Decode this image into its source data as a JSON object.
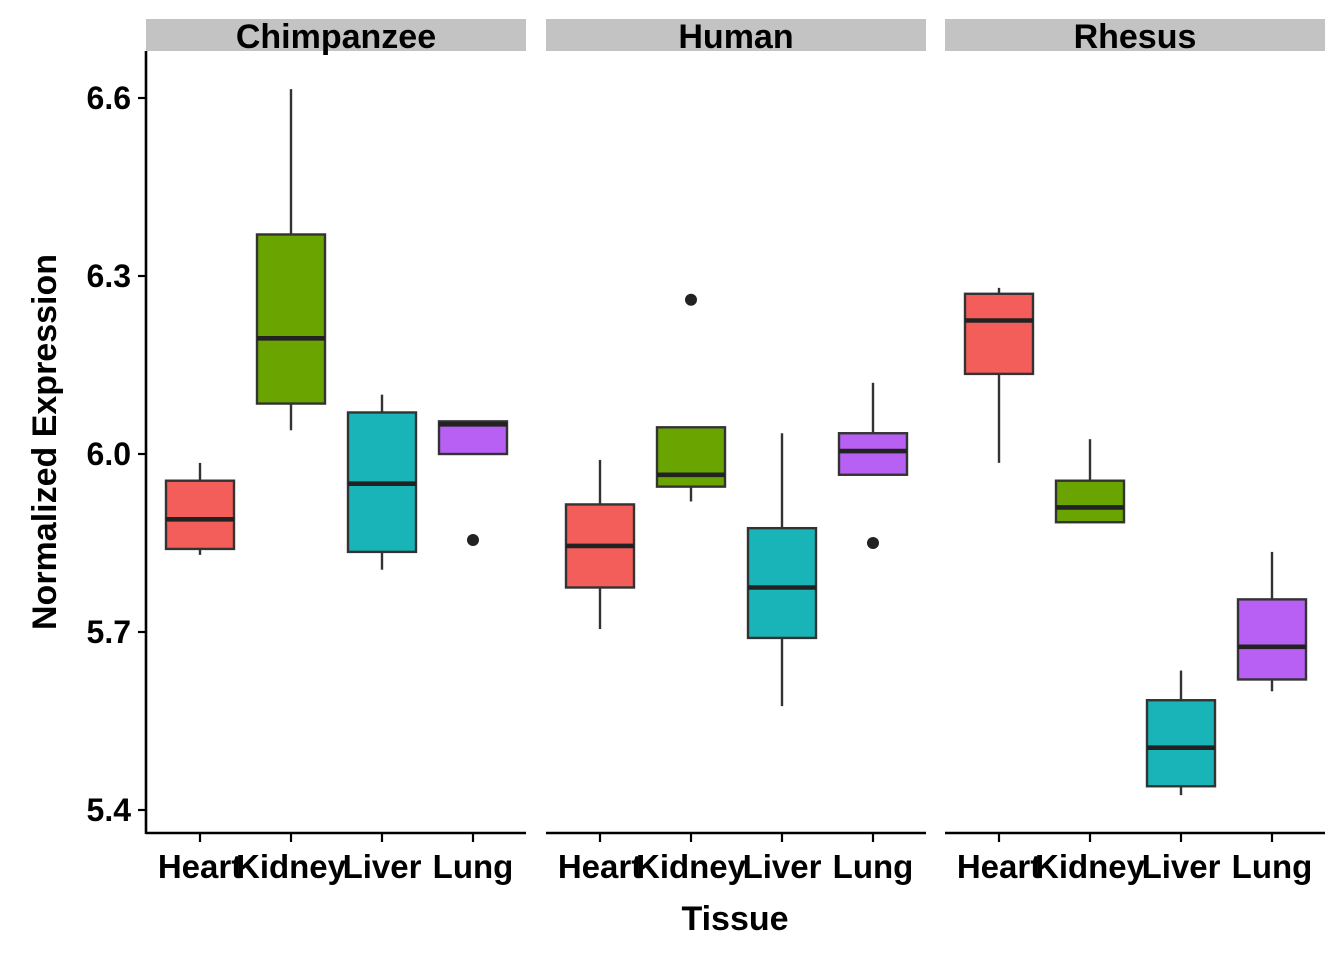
{
  "chart_data": {
    "type": "boxplot",
    "xlabel": "Tissue",
    "ylabel": "Normalized Expression",
    "ylim": [
      5.36,
      6.67
    ],
    "y_ticks": [
      "5.4",
      "5.7",
      "6.0",
      "6.3",
      "6.6"
    ],
    "grid": false,
    "categories": [
      "Heart",
      "Kidney",
      "Liver",
      "Lung"
    ],
    "category_colors": {
      "Heart": "#f35e5a",
      "Kidney": "#6aa400",
      "Liver": "#19b4b8",
      "Lung": "#b760f3"
    },
    "panels": [
      {
        "name": "Chimpanzee",
        "boxes": [
          {
            "category": "Heart",
            "whisker_low": 5.83,
            "q1": 5.84,
            "median": 5.89,
            "q3": 5.955,
            "whisker_high": 5.985,
            "outliers": []
          },
          {
            "category": "Kidney",
            "whisker_low": 6.04,
            "q1": 6.085,
            "median": 6.195,
            "q3": 6.37,
            "whisker_high": 6.615,
            "outliers": []
          },
          {
            "category": "Liver",
            "whisker_low": 5.805,
            "q1": 5.835,
            "median": 5.95,
            "q3": 6.07,
            "whisker_high": 6.1,
            "outliers": []
          },
          {
            "category": "Lung",
            "whisker_low": 6.0,
            "q1": 6.0,
            "median": 6.05,
            "q3": 6.055,
            "whisker_high": 6.055,
            "outliers": [
              5.855
            ]
          }
        ]
      },
      {
        "name": "Human",
        "boxes": [
          {
            "category": "Heart",
            "whisker_low": 5.705,
            "q1": 5.775,
            "median": 5.845,
            "q3": 5.915,
            "whisker_high": 5.99,
            "outliers": []
          },
          {
            "category": "Kidney",
            "whisker_low": 5.92,
            "q1": 5.945,
            "median": 5.965,
            "q3": 6.045,
            "whisker_high": 6.045,
            "outliers": [
              6.26
            ]
          },
          {
            "category": "Liver",
            "whisker_low": 5.575,
            "q1": 5.69,
            "median": 5.775,
            "q3": 5.875,
            "whisker_high": 6.035,
            "outliers": []
          },
          {
            "category": "Lung",
            "whisker_low": 5.965,
            "q1": 5.965,
            "median": 6.005,
            "q3": 6.035,
            "whisker_high": 6.12,
            "outliers": [
              5.85
            ]
          }
        ]
      },
      {
        "name": "Rhesus",
        "boxes": [
          {
            "category": "Heart",
            "whisker_low": 5.985,
            "q1": 6.135,
            "median": 6.225,
            "q3": 6.27,
            "whisker_high": 6.28,
            "outliers": []
          },
          {
            "category": "Kidney",
            "whisker_low": 5.885,
            "q1": 5.885,
            "median": 5.91,
            "q3": 5.955,
            "whisker_high": 6.025,
            "outliers": []
          },
          {
            "category": "Liver",
            "whisker_low": 5.425,
            "q1": 5.44,
            "median": 5.505,
            "q3": 5.585,
            "whisker_high": 5.635,
            "outliers": []
          },
          {
            "category": "Lung",
            "whisker_low": 5.6,
            "q1": 5.62,
            "median": 5.675,
            "q3": 5.755,
            "whisker_high": 5.835,
            "outliers": []
          }
        ]
      }
    ]
  }
}
